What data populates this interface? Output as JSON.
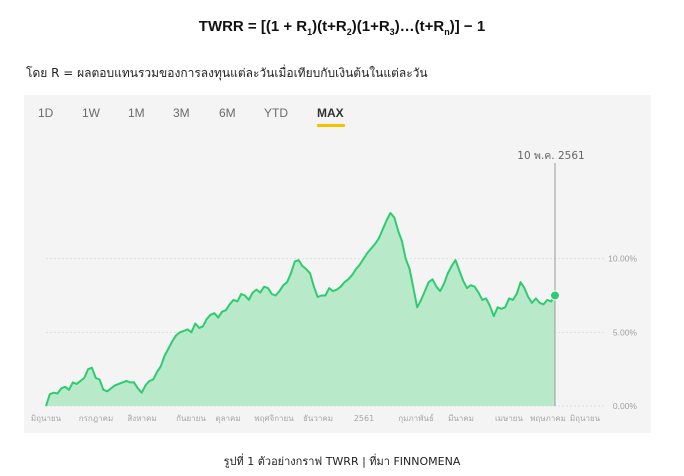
{
  "formula": {
    "lead": "TWRR = [(1 + R",
    "sub1": "1",
    "mid1": ")(t+R",
    "sub2": "2",
    "mid2": ")(1+R",
    "sub3": "3",
    "mid3": ")…(t+R",
    "subn": "n",
    "tail": ")]  − 1"
  },
  "definition": "โดย R = ผลตอบแทนรวมของการลงทุนแต่ละวันเมื่อเทียบกับเงินต้นในแต่ละวัน",
  "tabs": [
    {
      "label": "1D",
      "active": false
    },
    {
      "label": "1W",
      "active": false
    },
    {
      "label": "1M",
      "active": false
    },
    {
      "label": "3M",
      "active": false
    },
    {
      "label": "6M",
      "active": false
    },
    {
      "label": "YTD",
      "active": false
    },
    {
      "label": "MAX",
      "active": true
    }
  ],
  "colors": {
    "accent": "#f2c200",
    "line": "#2ecc71",
    "fill": "#b8e9c9",
    "panel": "#f4f4f4"
  },
  "chart_data": {
    "type": "area",
    "marker_label": "10 พ.ค. 2561",
    "y_ticks": [
      "0.00%",
      "5.00%",
      "10.00%"
    ],
    "y_tick_values": [
      0,
      5,
      10
    ],
    "ylim": [
      0,
      15
    ],
    "x_tick_labels": [
      "มิถุนายน",
      "กรกฎาคม",
      "สิงหาคม",
      "กันยายน",
      "ตุลาคม",
      "พฤศจิกายน",
      "ธันวาคม",
      "2561",
      "กุมภาพันธ์",
      "มีนาคม",
      "เมษายน",
      "พฤษภาคม",
      "มิถุนายน"
    ],
    "series": [
      {
        "values": [
          0.0,
          0.8,
          0.9,
          0.85,
          1.2,
          1.3,
          1.1,
          1.6,
          1.5,
          1.7,
          1.9,
          2.5,
          2.6,
          1.9,
          1.8,
          1.1,
          1.0,
          1.2,
          1.4,
          1.5,
          1.6,
          1.7,
          1.6,
          1.6,
          1.2,
          0.9,
          1.4,
          1.7,
          1.8,
          2.3,
          2.7,
          3.4,
          3.9,
          4.4,
          4.8,
          5.0,
          5.1,
          5.2,
          5.0,
          5.6,
          5.3,
          5.4,
          5.9,
          6.2,
          6.3,
          6.0,
          6.4,
          6.5,
          6.9,
          7.2,
          7.1,
          7.6,
          7.5,
          7.2,
          7.7,
          7.9,
          7.7,
          8.1,
          8.0,
          7.6,
          7.5,
          7.8,
          8.2,
          8.4,
          9.0,
          9.8,
          9.9,
          9.5,
          9.3,
          9.0,
          8.1,
          7.4,
          7.5,
          7.5,
          8.0,
          7.8,
          7.9,
          8.1,
          8.4,
          8.6,
          8.9,
          9.3,
          9.6,
          10.0,
          10.4,
          10.7,
          11.0,
          11.4,
          12.0,
          12.6,
          13.1,
          12.8,
          11.9,
          11.2,
          10.0,
          9.3,
          8.0,
          6.7,
          7.2,
          7.8,
          8.4,
          8.6,
          8.1,
          7.8,
          8.3,
          9.0,
          9.5,
          9.9,
          9.2,
          8.5,
          8.0,
          8.2,
          8.1,
          7.7,
          7.2,
          7.3,
          6.8,
          6.1,
          6.7,
          6.6,
          6.7,
          7.3,
          7.2,
          7.6,
          8.4,
          8.0,
          7.4,
          7.0,
          7.3,
          7.0,
          6.9,
          7.2,
          7.1,
          7.5
        ]
      }
    ],
    "grid": true
  },
  "caption": "รูปที่ 1 ตัวอย่างกราฟ TWRR | ที่มา FINNOMENA"
}
